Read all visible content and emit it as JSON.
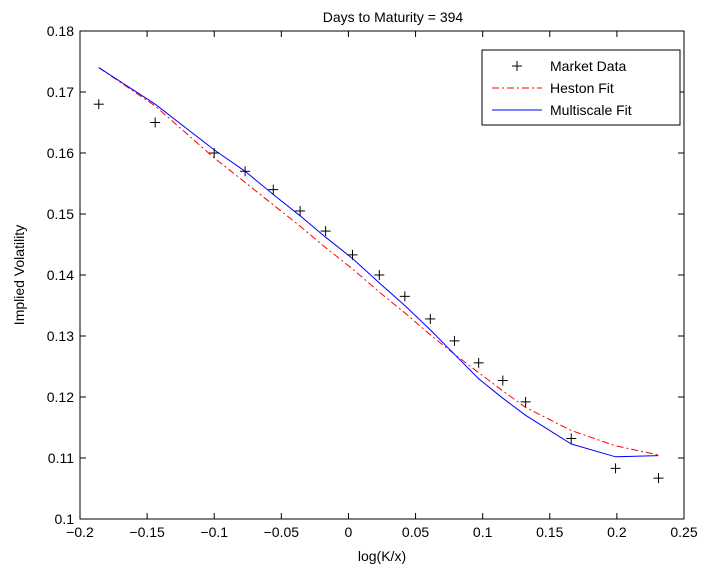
{
  "chart_data": {
    "type": "line",
    "title": "Days to Maturity = 394",
    "xlabel": "log(K/x)",
    "ylabel": "Implied Volatility",
    "xlim": [
      -0.2,
      0.25
    ],
    "ylim": [
      0.1,
      0.18
    ],
    "xticks": [
      -0.2,
      -0.15,
      -0.1,
      -0.05,
      0,
      0.05,
      0.1,
      0.15,
      0.2,
      0.25
    ],
    "xtick_labels": [
      "−0.2",
      "−0.15",
      "−0.1",
      "−0.05",
      "0",
      "0.05",
      "0.1",
      "0.15",
      "0.2",
      "0.25"
    ],
    "yticks": [
      0.1,
      0.11,
      0.12,
      0.13,
      0.14,
      0.15,
      0.16,
      0.17,
      0.18
    ],
    "ytick_labels": [
      "0.1",
      "0.11",
      "0.12",
      "0.13",
      "0.14",
      "0.15",
      "0.16",
      "0.17",
      "0.18"
    ],
    "grid": false,
    "legend_position": "top-right",
    "series": [
      {
        "name": "Market Data",
        "style": "marker-plus",
        "color": "#000000",
        "points": [
          [
            -0.186,
            0.168
          ],
          [
            -0.144,
            0.165
          ],
          [
            -0.1,
            0.16
          ],
          [
            -0.077,
            0.157
          ],
          [
            -0.056,
            0.154
          ],
          [
            -0.036,
            0.1505
          ],
          [
            -0.017,
            0.1472
          ],
          [
            0.003,
            0.1433
          ],
          [
            0.023,
            0.14
          ],
          [
            0.042,
            0.1365
          ],
          [
            0.061,
            0.1328
          ],
          [
            0.079,
            0.1292
          ],
          [
            0.097,
            0.1256
          ],
          [
            0.115,
            0.1227
          ],
          [
            0.132,
            0.1192
          ],
          [
            0.166,
            0.1132
          ],
          [
            0.199,
            0.1083
          ],
          [
            0.231,
            0.1067
          ]
        ]
      },
      {
        "name": "Heston Fit",
        "style": "dash-dot",
        "color": "#ff0000",
        "points": [
          [
            -0.186,
            0.174
          ],
          [
            -0.144,
            0.1677
          ],
          [
            -0.1,
            0.1592
          ],
          [
            -0.077,
            0.1552
          ],
          [
            -0.056,
            0.1515
          ],
          [
            -0.036,
            0.148
          ],
          [
            -0.017,
            0.1445
          ],
          [
            0.003,
            0.141
          ],
          [
            0.023,
            0.1372
          ],
          [
            0.042,
            0.1338
          ],
          [
            0.061,
            0.1302
          ],
          [
            0.079,
            0.127
          ],
          [
            0.097,
            0.124
          ],
          [
            0.115,
            0.121
          ],
          [
            0.132,
            0.1183
          ],
          [
            0.166,
            0.1145
          ],
          [
            0.199,
            0.112
          ],
          [
            0.231,
            0.1105
          ]
        ]
      },
      {
        "name": "Multiscale Fit",
        "style": "solid",
        "color": "#0000ff",
        "points": [
          [
            -0.186,
            0.174
          ],
          [
            -0.144,
            0.168
          ],
          [
            -0.1,
            0.1605
          ],
          [
            -0.077,
            0.157
          ],
          [
            -0.056,
            0.1532
          ],
          [
            -0.036,
            0.1497
          ],
          [
            -0.017,
            0.1462
          ],
          [
            0.003,
            0.1427
          ],
          [
            0.023,
            0.1387
          ],
          [
            0.042,
            0.135
          ],
          [
            0.061,
            0.131
          ],
          [
            0.079,
            0.127
          ],
          [
            0.097,
            0.123
          ],
          [
            0.115,
            0.1198
          ],
          [
            0.132,
            0.117
          ],
          [
            0.166,
            0.1123
          ],
          [
            0.199,
            0.1102
          ],
          [
            0.231,
            0.1104
          ]
        ]
      }
    ]
  }
}
